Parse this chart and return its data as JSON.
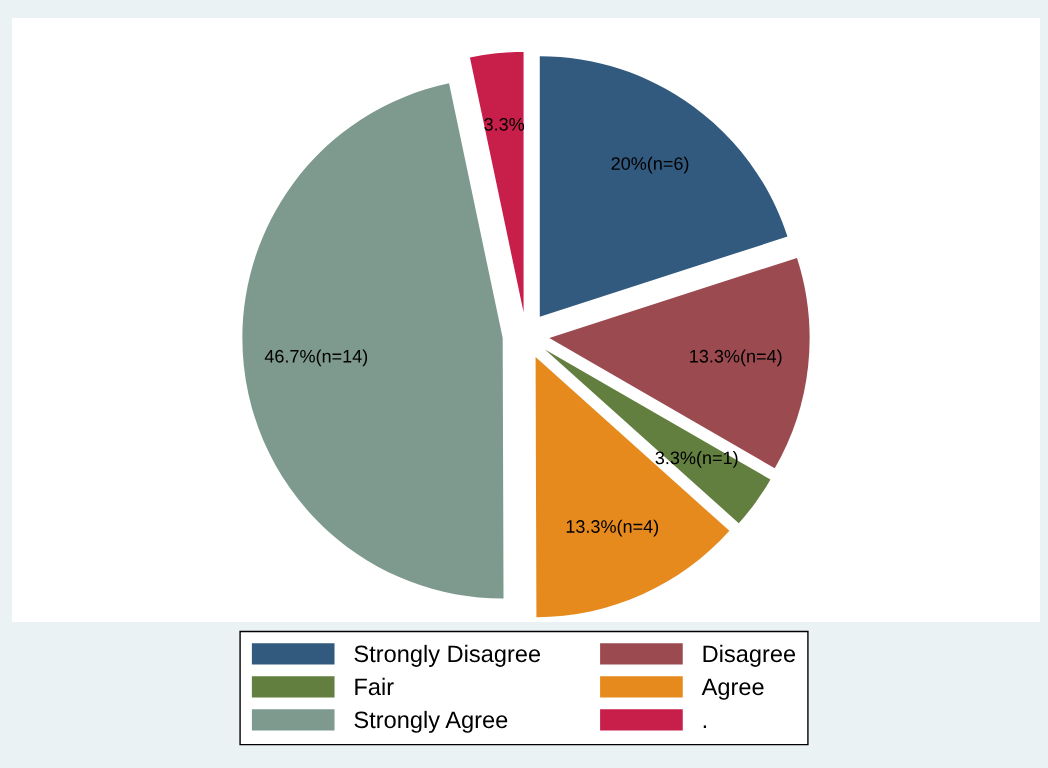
{
  "chart_data": {
    "type": "pie",
    "categories": [
      "Strongly Disagree",
      "Disagree",
      "Fair",
      "Agree",
      "Strongly Agree",
      "."
    ],
    "values": [
      20,
      13.3,
      3.3,
      13.3,
      46.7,
      3.3
    ],
    "colors": [
      "#325a7e",
      "#9b4a50",
      "#637f3f",
      "#e68a1e",
      "#7e9a8e",
      "#c81e4a"
    ],
    "value_labels": [
      "20%(n=6)",
      "13.3%(n=4)",
      "3.3%(n=1)",
      "13.3%(n=4)",
      "46.7%(n=14)",
      "3.3%"
    ],
    "legend": "bottom"
  }
}
